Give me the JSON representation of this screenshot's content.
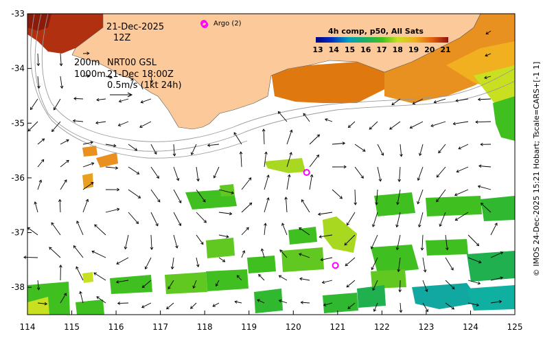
{
  "map": {
    "date": "21-Dec-2025",
    "time": "12Z",
    "legend_200m": "200m",
    "legend_1000m": "1000m",
    "product": "NRT00 GSL",
    "product_time": "21-Dec 18:00Z",
    "scale_label": "0.5m/s (1kt 24h)",
    "argo_label": "Argo (2)",
    "colorbar_title": "4h comp, p50, All Sats",
    "colorbar_ticks": [
      "13",
      "14",
      "15",
      "16",
      "17",
      "18",
      "19",
      "20",
      "21"
    ],
    "credit": "© IMOS 24-Dec-2025 15:21 Hobart; Tscale=CARS+[-1 1]"
  },
  "axes": {
    "x_ticks": [
      "114",
      "115",
      "116",
      "117",
      "118",
      "119",
      "120",
      "121",
      "122",
      "123",
      "124",
      "125"
    ],
    "y_ticks": [
      "-33",
      "-34",
      "-35",
      "-36",
      "-37",
      "-38"
    ],
    "xlim": [
      114,
      125
    ],
    "ylim": [
      -38.5,
      -33
    ]
  },
  "argo_floats": [
    {
      "lon": 118.0,
      "lat": -33.2
    },
    {
      "lon": 120.3,
      "lat": -35.9
    },
    {
      "lon": 120.95,
      "lat": -37.6
    }
  ],
  "colors": {
    "land": "#fcc99a",
    "argo": "#ff00ff",
    "frame": "#000000"
  }
}
